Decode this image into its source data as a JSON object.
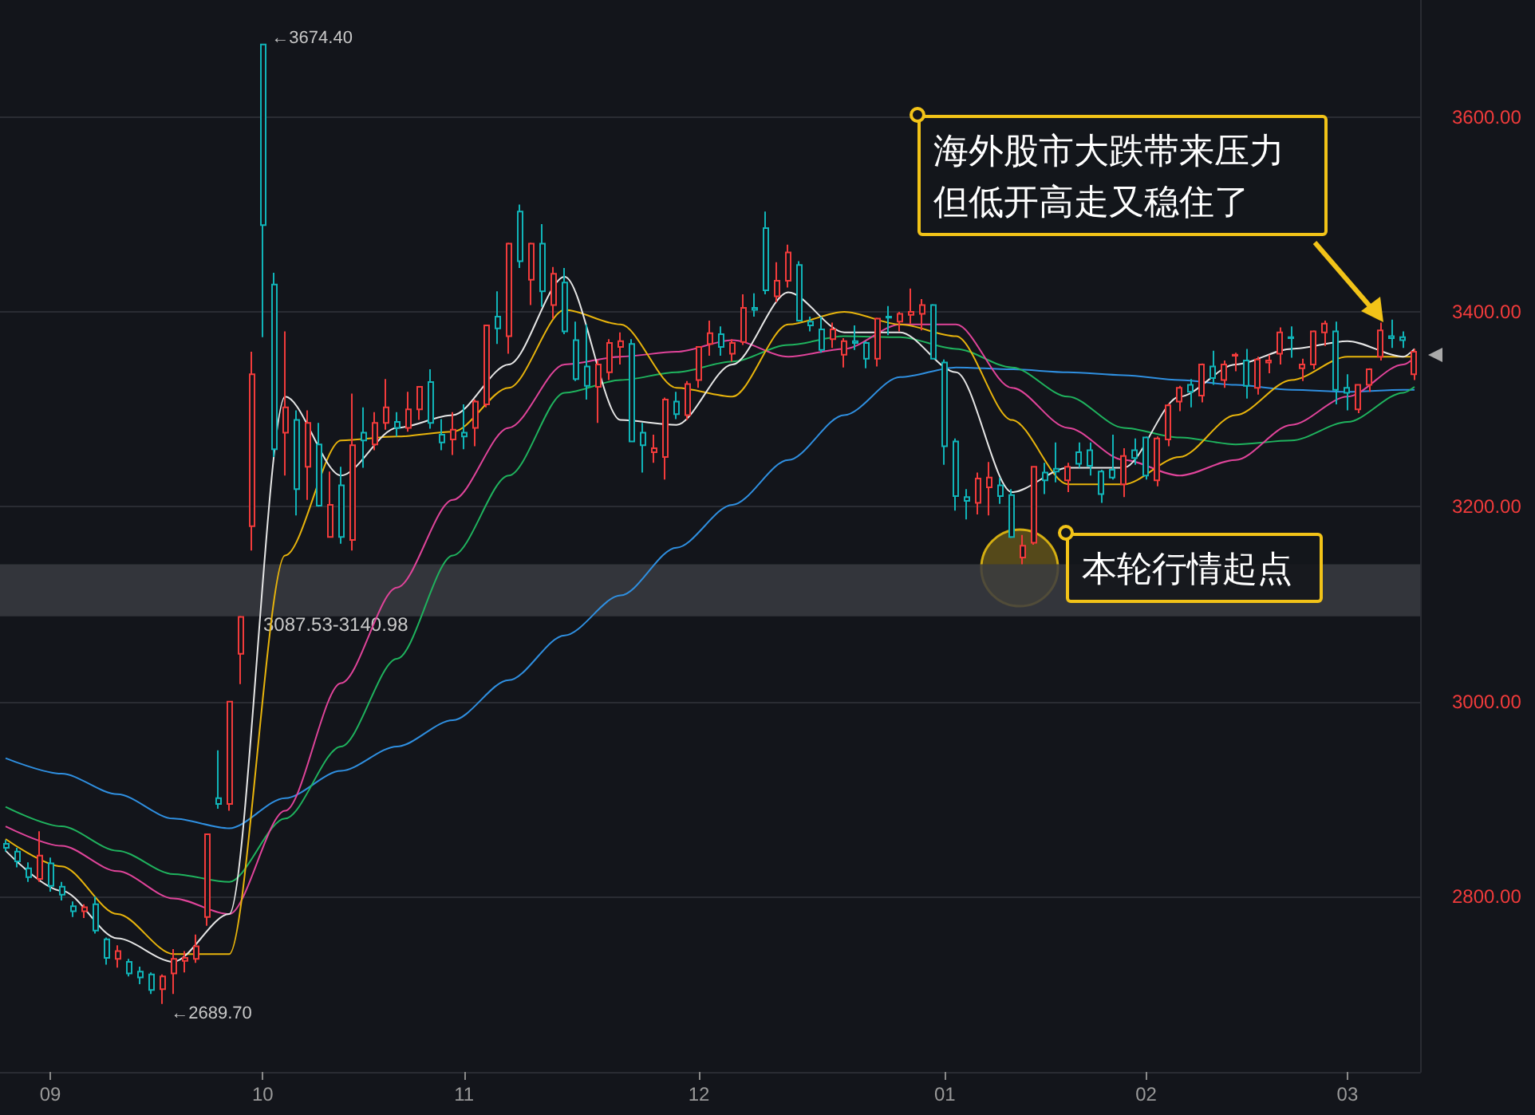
{
  "chart_data": {
    "type": "candlestick",
    "categories": [
      null,
      null,
      null,
      null,
      "09",
      null,
      null,
      null,
      null,
      null,
      null,
      null,
      null,
      null,
      null,
      null,
      null,
      null,
      null,
      null,
      null,
      null,
      null,
      "10",
      null,
      null,
      null,
      null,
      null,
      null,
      null,
      null,
      null,
      null,
      null,
      null,
      null,
      null,
      null,
      null,
      null,
      "11",
      null,
      null,
      null,
      null,
      null,
      null,
      null,
      null,
      null,
      null,
      null,
      null,
      null,
      null,
      null,
      null,
      null,
      null,
      null,
      null,
      "12",
      null,
      null,
      null,
      null,
      null,
      null,
      null,
      null,
      null,
      null,
      null,
      null,
      null,
      null,
      null,
      null,
      null,
      null,
      null,
      null,
      null,
      "01",
      null,
      null,
      null,
      null,
      null,
      null,
      null,
      null,
      null,
      null,
      null,
      null,
      null,
      null,
      null,
      null,
      null,
      "02",
      null,
      null,
      null,
      null,
      null,
      null,
      null,
      null,
      null,
      null,
      null,
      null,
      null,
      null,
      null,
      null,
      null,
      "03",
      null,
      null,
      null,
      null,
      null,
      null
    ],
    "series": [
      {
        "ohlc": [
          [
            2854,
            2858,
            2846,
            2850
          ],
          [
            2846,
            2850,
            2830,
            2836
          ],
          [
            2829,
            2835,
            2815,
            2820
          ],
          [
            2818,
            2867,
            2815,
            2842
          ],
          [
            2834,
            2840,
            2805,
            2811
          ],
          [
            2810,
            2815,
            2796,
            2802
          ],
          [
            2790,
            2795,
            2779,
            2785
          ],
          [
            2785,
            2792,
            2778,
            2789
          ],
          [
            2792,
            2800,
            2762,
            2765
          ],
          [
            2756,
            2758,
            2730,
            2737
          ],
          [
            2736,
            2750,
            2727,
            2744
          ],
          [
            2733,
            2736,
            2718,
            2721
          ],
          [
            2723,
            2728,
            2710,
            2717
          ],
          [
            2720,
            2722,
            2700,
            2704
          ],
          [
            2705,
            2720,
            2689.7,
            2718
          ],
          [
            2721,
            2746,
            2700,
            2736
          ],
          [
            2734,
            2744,
            2722,
            2737
          ],
          [
            2736,
            2761,
            2732,
            2749
          ],
          [
            2779,
            2864,
            2770,
            2864
          ],
          [
            2901,
            2950,
            2890,
            2895
          ],
          [
            2895,
            3000,
            2888,
            3000
          ],
          [
            3049,
            3088,
            3018,
            3087
          ],
          [
            3180,
            3359,
            3155,
            3336
          ],
          [
            3674.4,
            3674.4,
            3374,
            3489
          ],
          [
            3428,
            3440,
            3251,
            3259
          ],
          [
            3276,
            3380,
            3232,
            3302
          ],
          [
            3289,
            3299,
            3191,
            3218
          ],
          [
            3241,
            3299,
            3207,
            3286
          ],
          [
            3264,
            3286,
            3200,
            3201
          ],
          [
            3169,
            3236,
            3169,
            3202
          ],
          [
            3222,
            3241,
            3162,
            3169
          ],
          [
            3166,
            3316,
            3155,
            3263
          ],
          [
            3276,
            3302,
            3240,
            3268
          ],
          [
            3264,
            3297,
            3258,
            3286
          ],
          [
            3286,
            3331,
            3279,
            3302
          ],
          [
            3287,
            3297,
            3272,
            3281
          ],
          [
            3281,
            3318,
            3277,
            3300
          ],
          [
            3300,
            3323,
            3289,
            3323
          ],
          [
            3328,
            3341,
            3280,
            3286
          ],
          [
            3274,
            3290,
            3258,
            3266
          ],
          [
            3269,
            3297,
            3253,
            3279
          ],
          [
            3276,
            3305,
            3259,
            3272
          ],
          [
            3281,
            3310,
            3262,
            3308
          ],
          [
            3305,
            3386,
            3302,
            3386
          ],
          [
            3395,
            3421,
            3367,
            3383
          ],
          [
            3375,
            3471,
            3357,
            3470
          ],
          [
            3503,
            3510,
            3445,
            3452
          ],
          [
            3433,
            3471,
            3407,
            3470
          ],
          [
            3470,
            3490,
            3405,
            3421
          ],
          [
            3407,
            3446,
            3393,
            3439
          ],
          [
            3430,
            3445,
            3377,
            3380
          ],
          [
            3371,
            3390,
            3329,
            3331
          ],
          [
            3344,
            3387,
            3310,
            3324
          ],
          [
            3323,
            3350,
            3286,
            3346
          ],
          [
            3338,
            3372,
            3330,
            3368
          ],
          [
            3364,
            3379,
            3346,
            3370
          ],
          [
            3367,
            3372,
            3267,
            3267
          ],
          [
            3276,
            3286,
            3235,
            3263
          ],
          [
            3256,
            3274,
            3245,
            3260
          ],
          [
            3251,
            3312,
            3228,
            3310
          ],
          [
            3308,
            3318,
            3290,
            3295
          ],
          [
            3294,
            3329,
            3289,
            3326
          ],
          [
            3330,
            3364,
            3322,
            3364
          ],
          [
            3367,
            3391,
            3355,
            3378
          ],
          [
            3377,
            3385,
            3355,
            3364
          ],
          [
            3357,
            3372,
            3349,
            3368
          ],
          [
            3369,
            3418,
            3366,
            3404
          ],
          [
            3404,
            3419,
            3395,
            3402
          ],
          [
            3486,
            3503,
            3418,
            3422
          ],
          [
            3416,
            3451,
            3410,
            3432
          ],
          [
            3432,
            3469,
            3425,
            3461
          ],
          [
            3448,
            3452,
            3390,
            3391
          ],
          [
            3390,
            3395,
            3380,
            3386
          ],
          [
            3382,
            3395,
            3358,
            3361
          ],
          [
            3372,
            3389,
            3363,
            3382
          ],
          [
            3356,
            3373,
            3343,
            3370
          ],
          [
            3370,
            3386,
            3361,
            3368
          ],
          [
            3368,
            3370,
            3342,
            3352
          ],
          [
            3352,
            3394,
            3344,
            3393
          ],
          [
            3395,
            3406,
            3376,
            3394
          ],
          [
            3390,
            3400,
            3380,
            3398
          ],
          [
            3397,
            3424,
            3388,
            3400
          ],
          [
            3398,
            3413,
            3381,
            3407
          ],
          [
            3407,
            3408,
            3351,
            3352
          ],
          [
            3348,
            3351,
            3243,
            3262
          ],
          [
            3267,
            3270,
            3196,
            3211
          ],
          [
            3210,
            3218,
            3187,
            3206
          ],
          [
            3204,
            3235,
            3192,
            3229
          ],
          [
            3220,
            3246,
            3191,
            3230
          ],
          [
            3222,
            3230,
            3203,
            3211
          ],
          [
            3212,
            3218,
            3168,
            3169
          ],
          [
            3148,
            3171,
            3140.98,
            3160
          ],
          [
            3163,
            3241,
            3161,
            3241
          ],
          [
            3235,
            3245,
            3213,
            3227
          ],
          [
            3239,
            3266,
            3225,
            3236
          ],
          [
            3227,
            3245,
            3215,
            3241
          ],
          [
            3256,
            3266,
            3240,
            3244
          ],
          [
            3258,
            3266,
            3232,
            3242
          ],
          [
            3236,
            3238,
            3204,
            3213
          ],
          [
            3238,
            3274,
            3228,
            3230
          ],
          [
            3223,
            3260,
            3210,
            3252
          ],
          [
            3258,
            3270,
            3243,
            3250
          ],
          [
            3271,
            3272,
            3228,
            3232
          ],
          [
            3227,
            3272,
            3221,
            3270
          ],
          [
            3269,
            3306,
            3262,
            3304
          ],
          [
            3308,
            3324,
            3298,
            3322
          ],
          [
            3325,
            3331,
            3302,
            3318
          ],
          [
            3314,
            3347,
            3307,
            3346
          ],
          [
            3344,
            3360,
            3325,
            3332
          ],
          [
            3330,
            3350,
            3322,
            3346
          ],
          [
            3355,
            3358,
            3339,
            3356
          ],
          [
            3350,
            3362,
            3311,
            3324
          ],
          [
            3322,
            3354,
            3315,
            3351
          ],
          [
            3348,
            3356,
            3337,
            3350
          ],
          [
            3357,
            3384,
            3346,
            3379
          ],
          [
            3374,
            3385,
            3353,
            3373
          ],
          [
            3342,
            3352,
            3329,
            3346
          ],
          [
            3346,
            3381,
            3341,
            3380
          ],
          [
            3379,
            3391,
            3365,
            3388
          ],
          [
            3380,
            3390,
            3305,
            3320
          ],
          [
            3322,
            3336,
            3299,
            3317
          ],
          [
            3300,
            3325,
            3296,
            3325
          ],
          [
            3325,
            3342,
            3318,
            3341
          ],
          [
            3354,
            3389,
            3350,
            3381
          ],
          [
            3375,
            3392,
            3363,
            3373
          ],
          [
            3374,
            3380,
            3363,
            3371
          ],
          [
            3336,
            3362,
            3330,
            3359
          ]
        ],
        "colors": [
          "#10b4b8",
          "#10b4b8",
          "#10b4b8",
          "#f23b3b",
          "#10b4b8",
          "#10b4b8",
          "#10b4b8",
          "#f23b3b",
          "#10b4b8",
          "#10b4b8",
          "#f23b3b",
          "#10b4b8",
          "#10b4b8",
          "#10b4b8",
          "#f23b3b",
          "#f23b3b",
          "#f23b3b",
          "#f23b3b",
          "#f23b3b",
          "#10b4b8",
          "#f23b3b",
          "#f23b3b",
          "#f23b3b",
          "#10b4b8",
          "#10b4b8",
          "#f23b3b",
          "#10b4b8",
          "#f23b3b",
          "#10b4b8",
          "#f23b3b",
          "#10b4b8",
          "#f23b3b",
          "#10b4b8",
          "#f23b3b",
          "#f23b3b",
          "#10b4b8",
          "#f23b3b",
          "#f23b3b",
          "#10b4b8",
          "#10b4b8",
          "#f23b3b",
          "#10b4b8",
          "#f23b3b",
          "#f23b3b",
          "#10b4b8",
          "#f23b3b",
          "#10b4b8",
          "#f23b3b",
          "#10b4b8",
          "#f23b3b",
          "#10b4b8",
          "#10b4b8",
          "#10b4b8",
          "#f23b3b",
          "#f23b3b",
          "#f23b3b",
          "#10b4b8",
          "#10b4b8",
          "#f23b3b",
          "#f23b3b",
          "#10b4b8",
          "#f23b3b",
          "#f23b3b",
          "#f23b3b",
          "#10b4b8",
          "#f23b3b",
          "#f23b3b",
          "#10b4b8",
          "#10b4b8",
          "#f23b3b",
          "#f23b3b",
          "#10b4b8",
          "#10b4b8",
          "#10b4b8",
          "#f23b3b",
          "#f23b3b",
          "#10b4b8",
          "#10b4b8",
          "#f23b3b",
          "#10b4b8",
          "#f23b3b",
          "#f23b3b",
          "#f23b3b",
          "#10b4b8",
          "#10b4b8",
          "#10b4b8",
          "#10b4b8",
          "#f23b3b",
          "#f23b3b",
          "#10b4b8",
          "#10b4b8",
          "#f23b3b",
          "#f23b3b",
          "#10b4b8",
          "#10b4b8",
          "#f23b3b",
          "#10b4b8",
          "#10b4b8",
          "#10b4b8",
          "#10b4b8",
          "#f23b3b",
          "#10b4b8",
          "#10b4b8",
          "#f23b3b",
          "#f23b3b",
          "#f23b3b",
          "#10b4b8",
          "#f23b3b",
          "#10b4b8",
          "#f23b3b",
          "#f23b3b",
          "#10b4b8",
          "#f23b3b",
          "#f23b3b",
          "#f23b3b",
          "#10b4b8",
          "#f23b3b",
          "#f23b3b",
          "#f23b3b",
          "#10b4b8",
          "#10b4b8",
          "#f23b3b",
          "#f23b3b",
          "#f23b3b",
          "#10b4b8",
          "#10b4b8",
          "#f23b3b"
        ]
      },
      {
        "type": "line",
        "color": "#2f8fe0",
        "values": [
          2942,
          null,
          null,
          null,
          null,
          2926,
          null,
          null,
          null,
          null,
          2905,
          null,
          null,
          null,
          null,
          2880,
          null,
          null,
          null,
          null,
          2870,
          null,
          null,
          null,
          null,
          2901,
          null,
          null,
          null,
          null,
          2929,
          null,
          null,
          null,
          null,
          2954,
          null,
          null,
          null,
          null,
          2981,
          null,
          null,
          null,
          null,
          3022,
          null,
          null,
          null,
          null,
          3068,
          null,
          null,
          null,
          null,
          3109,
          null,
          null,
          null,
          null,
          3158,
          null,
          null,
          null,
          null,
          3202,
          null,
          null,
          null,
          null,
          3248,
          null,
          null,
          null,
          null,
          3294,
          null,
          null,
          null,
          null,
          3333,
          null,
          null,
          null,
          null,
          3343,
          null,
          null,
          null,
          null,
          3341,
          null,
          null,
          null,
          null,
          3338,
          null,
          null,
          null,
          null,
          3335,
          null,
          null,
          null,
          null,
          3330,
          null,
          null,
          null,
          null,
          3325,
          null,
          null,
          null,
          null,
          3320,
          null,
          null,
          null,
          null,
          3318,
          null,
          null,
          null,
          null,
          3320,
          3320
        ]
      },
      {
        "type": "line",
        "color": "#1fb35e",
        "values": [
          2892,
          null,
          null,
          null,
          null,
          2872,
          null,
          null,
          null,
          null,
          2847,
          null,
          null,
          null,
          null,
          2823,
          null,
          null,
          null,
          null,
          2815,
          null,
          null,
          null,
          null,
          2880,
          null,
          null,
          null,
          null,
          2954,
          null,
          null,
          null,
          null,
          3044,
          null,
          null,
          null,
          null,
          3150,
          null,
          null,
          null,
          null,
          3232,
          null,
          null,
          null,
          null,
          3317,
          null,
          null,
          null,
          null,
          3330,
          null,
          null,
          null,
          null,
          3338,
          null,
          null,
          null,
          null,
          3349,
          null,
          null,
          null,
          null,
          3366,
          null,
          null,
          null,
          null,
          3375,
          null,
          null,
          null,
          null,
          3374,
          null,
          null,
          null,
          null,
          3362,
          null,
          null,
          null,
          null,
          3343,
          null,
          null,
          null,
          null,
          3313,
          null,
          null,
          null,
          null,
          3281,
          null,
          null,
          null,
          null,
          3271,
          null,
          null,
          null,
          null,
          3264,
          null,
          null,
          null,
          null,
          3268,
          null,
          null,
          null,
          null,
          3287,
          null,
          null,
          null,
          null,
          3317,
          3323
        ]
      },
      {
        "type": "line",
        "color": "#e0449a",
        "values": [
          2872,
          null,
          null,
          null,
          null,
          2852,
          null,
          null,
          null,
          null,
          2826,
          null,
          null,
          null,
          null,
          2798,
          null,
          null,
          null,
          null,
          2782,
          null,
          null,
          null,
          null,
          2888,
          null,
          null,
          null,
          null,
          3019,
          null,
          null,
          null,
          null,
          3117,
          null,
          null,
          null,
          null,
          3207,
          null,
          null,
          null,
          null,
          3281,
          null,
          null,
          null,
          null,
          3346,
          null,
          null,
          null,
          null,
          3354,
          null,
          null,
          null,
          null,
          3359,
          null,
          null,
          null,
          null,
          3371,
          null,
          null,
          null,
          null,
          3354,
          null,
          null,
          null,
          null,
          3362,
          null,
          null,
          null,
          null,
          3387,
          null,
          null,
          null,
          null,
          3387,
          null,
          null,
          null,
          null,
          3322,
          null,
          null,
          null,
          null,
          3281,
          null,
          null,
          null,
          null,
          3248,
          null,
          null,
          null,
          null,
          3232,
          null,
          null,
          null,
          null,
          3248,
          null,
          null,
          null,
          null,
          3284,
          null,
          null,
          null,
          null,
          3313,
          null,
          null,
          null,
          null,
          3346,
          3353
        ]
      },
      {
        "type": "line",
        "color": "#e8b40c",
        "values": [
          2859,
          null,
          null,
          null,
          null,
          2831,
          null,
          null,
          null,
          null,
          2782,
          null,
          null,
          null,
          null,
          2741,
          null,
          null,
          null,
          null,
          2741,
          null,
          null,
          null,
          null,
          3150,
          null,
          null,
          null,
          null,
          3268,
          null,
          null,
          null,
          null,
          3272,
          null,
          null,
          null,
          null,
          3277,
          null,
          null,
          null,
          null,
          3322,
          null,
          null,
          null,
          null,
          3402,
          null,
          null,
          null,
          null,
          3387,
          null,
          null,
          null,
          null,
          3322,
          null,
          null,
          null,
          null,
          3313,
          null,
          null,
          null,
          null,
          3387,
          null,
          null,
          null,
          null,
          3400,
          null,
          null,
          null,
          null,
          3387,
          null,
          null,
          null,
          null,
          3375,
          null,
          null,
          null,
          null,
          3289,
          null,
          null,
          null,
          null,
          3223,
          null,
          null,
          null,
          null,
          3223,
          null,
          null,
          null,
          null,
          3251,
          null,
          null,
          null,
          null,
          3294,
          null,
          null,
          null,
          null,
          3330,
          null,
          null,
          null,
          null,
          3354,
          null,
          null,
          null,
          null,
          3354,
          3354
        ]
      },
      {
        "type": "line",
        "color": "#e6e6e6",
        "values": [
          2847,
          null,
          null,
          null,
          null,
          2806,
          null,
          null,
          null,
          null,
          2757,
          null,
          null,
          null,
          null,
          2733,
          null,
          null,
          null,
          null,
          2782,
          null,
          null,
          null,
          null,
          3313,
          null,
          null,
          null,
          null,
          3232,
          null,
          null,
          null,
          null,
          3281,
          null,
          null,
          null,
          null,
          3294,
          null,
          null,
          null,
          null,
          3346,
          null,
          null,
          null,
          null,
          3436,
          null,
          null,
          null,
          null,
          3289,
          null,
          null,
          null,
          null,
          3284,
          null,
          null,
          null,
          null,
          3346,
          null,
          null,
          null,
          null,
          3420,
          null,
          null,
          null,
          null,
          3379,
          null,
          null,
          null,
          null,
          3379,
          null,
          null,
          null,
          null,
          3338,
          null,
          null,
          null,
          null,
          3215,
          null,
          null,
          null,
          null,
          3240,
          null,
          null,
          null,
          null,
          3240,
          null,
          null,
          null,
          null,
          3313,
          null,
          null,
          null,
          null,
          3346,
          null,
          null,
          null,
          null,
          3362,
          null,
          null,
          null,
          null,
          3370,
          null,
          null,
          null,
          null,
          3354,
          3362
        ]
      }
    ],
    "ylim": [
      2620,
      3720
    ],
    "yticks": [
      {
        "value": 2800,
        "label": "2800.00"
      },
      {
        "value": 3000,
        "label": "3000.00"
      },
      {
        "value": 3200,
        "label": "3200.00"
      },
      {
        "value": 3400,
        "label": "3400.00"
      },
      {
        "value": 3600,
        "label": "3600.00"
      }
    ],
    "grid": "y",
    "bands": [
      {
        "axis": "y",
        "from": 3087.53,
        "to": 3140.98,
        "label": "3087.53-3140.98",
        "color": "#3a3b41"
      }
    ],
    "annotations": [
      "←3674.40",
      "←2689.70",
      "海外股市大跌带来压力",
      "但低开高走又稳住了",
      "本轮行情起点"
    ]
  }
}
